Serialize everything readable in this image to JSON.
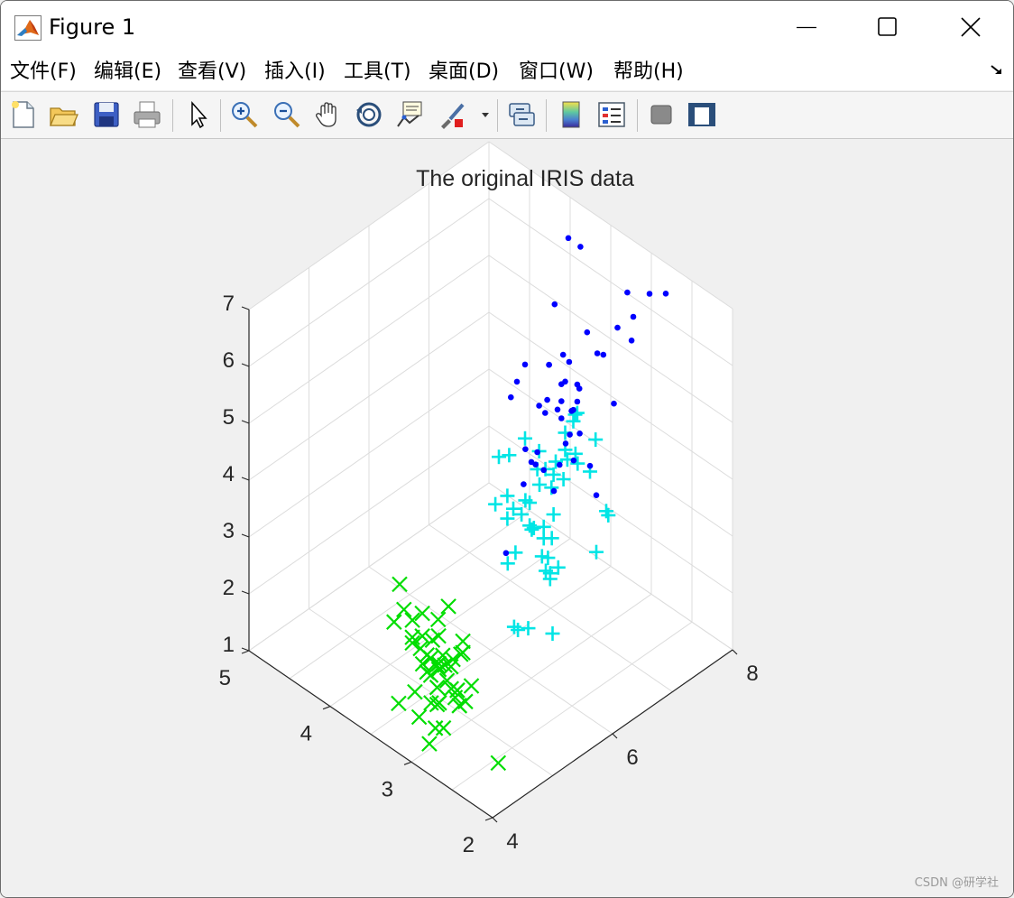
{
  "window": {
    "title": "Figure 1"
  },
  "menu": [
    {
      "label": "文件(F)"
    },
    {
      "label": "编辑(E)"
    },
    {
      "label": "查看(V)"
    },
    {
      "label": "插入(I)"
    },
    {
      "label": "工具(T)"
    },
    {
      "label": "桌面(D)"
    },
    {
      "label": "窗口(W)"
    },
    {
      "label": "帮助(H)"
    }
  ],
  "toolbar": {
    "buttons": [
      "new-figure-icon",
      "open-file-icon",
      "save-icon",
      "print-icon",
      "pointer-icon",
      "zoom-in-icon",
      "zoom-out-icon",
      "pan-hand-icon",
      "rotate-3d-icon",
      "data-cursor-icon",
      "brush-icon",
      "link-plot-icon",
      "colorbar-icon",
      "legend-icon",
      "hide-plot-tools-icon",
      "show-plot-tools-icon"
    ]
  },
  "watermark": "CSDN @研学社",
  "chart_data": {
    "type": "scatter",
    "projection": "3d",
    "title": "The original IRIS data",
    "xlim": [
      4,
      8
    ],
    "ylim": [
      2,
      5
    ],
    "zlim": [
      1,
      7
    ],
    "x_ticks": [
      "4",
      "6",
      "8"
    ],
    "y_ticks": [
      "2",
      "3",
      "4",
      "5"
    ],
    "z_ticks": [
      "1",
      "2",
      "3",
      "4",
      "5",
      "6",
      "7"
    ],
    "grid": true,
    "series": [
      {
        "marker": "x",
        "color": "#00dd00",
        "points": [
          [
            5.1,
            3.5,
            1.4
          ],
          [
            4.9,
            3.0,
            1.4
          ],
          [
            4.7,
            3.2,
            1.3
          ],
          [
            4.6,
            3.1,
            1.5
          ],
          [
            5.0,
            3.6,
            1.4
          ],
          [
            5.4,
            3.9,
            1.7
          ],
          [
            4.6,
            3.4,
            1.4
          ],
          [
            5.0,
            3.4,
            1.5
          ],
          [
            4.4,
            2.9,
            1.4
          ],
          [
            4.9,
            3.1,
            1.5
          ],
          [
            5.4,
            3.7,
            1.5
          ],
          [
            4.8,
            3.4,
            1.6
          ],
          [
            4.8,
            3.0,
            1.4
          ],
          [
            4.3,
            3.0,
            1.1
          ],
          [
            5.8,
            4.0,
            1.2
          ],
          [
            5.7,
            4.4,
            1.5
          ],
          [
            5.4,
            3.9,
            1.3
          ],
          [
            5.1,
            3.5,
            1.4
          ],
          [
            5.7,
            3.8,
            1.7
          ],
          [
            5.1,
            3.8,
            1.5
          ],
          [
            5.4,
            3.4,
            1.7
          ],
          [
            5.1,
            3.7,
            1.5
          ],
          [
            4.6,
            3.6,
            1.0
          ],
          [
            5.1,
            3.3,
            1.7
          ],
          [
            4.8,
            3.4,
            1.9
          ],
          [
            5.0,
            3.0,
            1.6
          ],
          [
            5.0,
            3.4,
            1.6
          ],
          [
            5.2,
            3.5,
            1.5
          ],
          [
            5.2,
            3.4,
            1.4
          ],
          [
            4.7,
            3.2,
            1.6
          ],
          [
            4.8,
            3.1,
            1.6
          ],
          [
            5.4,
            3.4,
            1.5
          ],
          [
            5.2,
            4.1,
            1.5
          ],
          [
            5.5,
            4.2,
            1.4
          ],
          [
            4.9,
            3.1,
            1.5
          ],
          [
            5.0,
            3.2,
            1.2
          ],
          [
            5.5,
            3.5,
            1.3
          ],
          [
            4.4,
            3.0,
            1.3
          ],
          [
            5.1,
            3.4,
            1.5
          ],
          [
            5.0,
            3.5,
            1.3
          ],
          [
            4.5,
            2.3,
            1.3
          ],
          [
            4.4,
            3.2,
            1.3
          ],
          [
            5.0,
            3.5,
            1.6
          ],
          [
            5.1,
            3.8,
            1.9
          ],
          [
            4.8,
            3.0,
            1.4
          ],
          [
            5.1,
            3.8,
            1.6
          ],
          [
            4.6,
            3.2,
            1.4
          ],
          [
            5.3,
            3.7,
            1.5
          ],
          [
            5.0,
            3.3,
            1.4
          ]
        ]
      },
      {
        "marker": "+",
        "color": "#00e5e5",
        "points": [
          [
            7.0,
            3.2,
            4.7
          ],
          [
            6.4,
            3.2,
            4.5
          ],
          [
            6.9,
            3.1,
            4.9
          ],
          [
            5.5,
            2.3,
            4.0
          ],
          [
            6.5,
            2.8,
            4.6
          ],
          [
            5.7,
            2.8,
            4.5
          ],
          [
            6.3,
            3.3,
            4.7
          ],
          [
            4.9,
            2.4,
            3.3
          ],
          [
            6.6,
            2.9,
            4.6
          ],
          [
            5.2,
            2.7,
            3.9
          ],
          [
            5.0,
            2.0,
            3.5
          ],
          [
            5.9,
            3.0,
            4.2
          ],
          [
            6.0,
            2.2,
            4.0
          ],
          [
            6.1,
            2.9,
            4.7
          ],
          [
            5.6,
            2.9,
            3.6
          ],
          [
            6.7,
            3.1,
            4.4
          ],
          [
            5.6,
            3.0,
            4.5
          ],
          [
            5.8,
            2.7,
            4.1
          ],
          [
            6.2,
            2.2,
            4.5
          ],
          [
            5.6,
            2.5,
            3.9
          ],
          [
            5.9,
            3.2,
            4.8
          ],
          [
            6.1,
            2.8,
            4.0
          ],
          [
            6.3,
            2.5,
            4.9
          ],
          [
            6.1,
            2.8,
            4.7
          ],
          [
            6.4,
            2.9,
            4.3
          ],
          [
            6.6,
            3.0,
            4.4
          ],
          [
            6.8,
            2.8,
            4.8
          ],
          [
            6.7,
            3.0,
            5.0
          ],
          [
            6.0,
            2.9,
            4.5
          ],
          [
            5.7,
            2.6,
            3.5
          ],
          [
            5.5,
            2.4,
            3.8
          ],
          [
            5.5,
            2.4,
            3.7
          ],
          [
            5.8,
            2.7,
            3.9
          ],
          [
            6.0,
            2.7,
            5.1
          ],
          [
            5.4,
            3.0,
            4.5
          ],
          [
            6.0,
            3.4,
            4.5
          ],
          [
            6.7,
            3.1,
            4.7
          ],
          [
            6.3,
            2.3,
            4.4
          ],
          [
            5.6,
            3.0,
            4.1
          ],
          [
            5.5,
            2.5,
            4.0
          ],
          [
            5.5,
            2.6,
            4.4
          ],
          [
            6.1,
            3.0,
            4.6
          ],
          [
            5.8,
            2.6,
            4.0
          ],
          [
            5.0,
            2.3,
            3.3
          ],
          [
            5.6,
            2.7,
            4.2
          ],
          [
            5.7,
            3.0,
            4.2
          ],
          [
            5.7,
            2.9,
            4.2
          ],
          [
            6.2,
            2.9,
            4.3
          ],
          [
            5.1,
            2.5,
            3.0
          ],
          [
            5.7,
            2.8,
            4.1
          ]
        ]
      },
      {
        "marker": ".",
        "color": "#0000ff",
        "points": [
          [
            6.3,
            3.3,
            6.0
          ],
          [
            5.8,
            2.7,
            5.1
          ],
          [
            7.1,
            3.0,
            5.9
          ],
          [
            6.3,
            2.9,
            5.6
          ],
          [
            6.5,
            3.0,
            5.8
          ],
          [
            7.6,
            3.0,
            6.6
          ],
          [
            4.9,
            2.5,
            4.5
          ],
          [
            7.3,
            2.9,
            6.3
          ],
          [
            6.7,
            2.5,
            5.8
          ],
          [
            7.2,
            3.6,
            6.1
          ],
          [
            6.5,
            3.2,
            5.1
          ],
          [
            6.4,
            2.7,
            5.3
          ],
          [
            6.8,
            3.0,
            5.5
          ],
          [
            5.7,
            2.5,
            5.0
          ],
          [
            5.8,
            2.8,
            5.1
          ],
          [
            6.4,
            3.2,
            5.3
          ],
          [
            6.5,
            3.0,
            5.5
          ],
          [
            7.7,
            3.8,
            6.7
          ],
          [
            7.7,
            2.6,
            6.9
          ],
          [
            6.0,
            2.2,
            5.0
          ],
          [
            6.9,
            3.2,
            5.7
          ],
          [
            5.6,
            2.8,
            4.9
          ],
          [
            7.7,
            2.8,
            6.7
          ],
          [
            6.3,
            2.7,
            4.9
          ],
          [
            6.7,
            3.3,
            5.7
          ],
          [
            7.2,
            3.2,
            6.0
          ],
          [
            6.2,
            2.8,
            4.8
          ],
          [
            6.1,
            3.0,
            4.9
          ],
          [
            6.4,
            2.8,
            5.6
          ],
          [
            7.2,
            3.0,
            5.8
          ],
          [
            7.4,
            2.8,
            6.1
          ],
          [
            7.9,
            3.8,
            6.4
          ],
          [
            6.4,
            2.8,
            5.6
          ],
          [
            6.3,
            2.8,
            5.1
          ],
          [
            6.1,
            2.6,
            5.6
          ],
          [
            7.7,
            3.0,
            6.1
          ],
          [
            6.3,
            3.4,
            5.6
          ],
          [
            6.4,
            3.1,
            5.5
          ],
          [
            6.0,
            3.0,
            4.8
          ],
          [
            6.9,
            3.1,
            5.4
          ],
          [
            6.7,
            3.1,
            5.6
          ],
          [
            6.9,
            3.1,
            5.1
          ],
          [
            6.8,
            3.2,
            5.9
          ],
          [
            6.7,
            3.3,
            5.7
          ],
          [
            6.7,
            3.0,
            5.2
          ],
          [
            6.3,
            2.5,
            5.0
          ],
          [
            6.5,
            3.0,
            5.2
          ],
          [
            6.2,
            3.4,
            5.4
          ],
          [
            5.9,
            3.0,
            5.1
          ]
        ]
      }
    ]
  }
}
